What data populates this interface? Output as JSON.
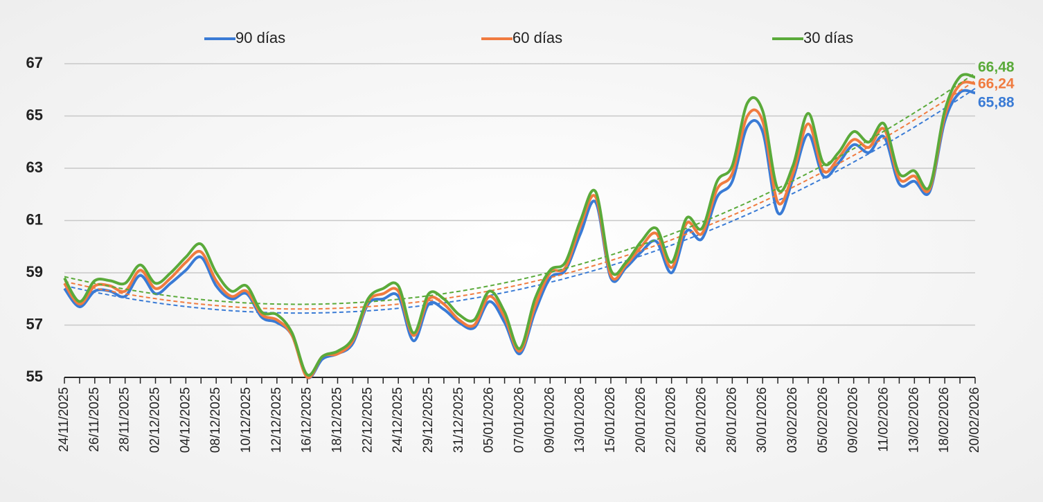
{
  "chart_data": {
    "type": "line",
    "categories": [
      "24/11/2025",
      null,
      "26/11/2025",
      null,
      "28/11/2025",
      null,
      "02/12/2025",
      null,
      "04/12/2025",
      null,
      "08/12/2025",
      null,
      "10/12/2025",
      null,
      "12/12/2025",
      null,
      "16/12/2025",
      null,
      "18/12/2025",
      null,
      "22/12/2025",
      null,
      "24/12/2025",
      null,
      "29/12/2025",
      null,
      "31/12/2025",
      null,
      "05/01/2026",
      null,
      "07/01/2026",
      null,
      "09/01/2026",
      null,
      "13/01/2026",
      null,
      "15/01/2026",
      null,
      "20/01/2026",
      null,
      "22/01/2026",
      null,
      "26/01/2026",
      null,
      "28/01/2026",
      null,
      "30/01/2026",
      null,
      "03/02/2026",
      null,
      "05/02/2026",
      null,
      "09/02/2026",
      null,
      "11/02/2026",
      null,
      "13/02/2026",
      null,
      "18/02/2026",
      null,
      "20/02/2026"
    ],
    "series": [
      {
        "name": "90 días",
        "color": "#3a7bd5",
        "end_label": "65,88",
        "values": [
          58.4,
          57.7,
          58.3,
          58.3,
          58.1,
          58.9,
          58.2,
          58.6,
          59.1,
          59.6,
          58.5,
          58.0,
          58.2,
          57.3,
          57.1,
          56.6,
          55.0,
          55.7,
          55.9,
          56.3,
          57.8,
          58.0,
          58.1,
          56.4,
          57.8,
          57.6,
          57.1,
          56.9,
          57.9,
          57.1,
          55.9,
          57.5,
          58.8,
          59.1,
          60.5,
          61.7,
          58.8,
          59.2,
          59.8,
          60.2,
          59.0,
          60.6,
          60.3,
          61.9,
          62.5,
          64.6,
          64.4,
          61.3,
          62.6,
          64.3,
          62.7,
          63.2,
          63.9,
          63.6,
          64.2,
          62.4,
          62.5,
          62.1,
          64.8,
          65.9,
          65.88
        ]
      },
      {
        "name": "60 días",
        "color": "#f07b3f",
        "end_label": "66,24",
        "values": [
          58.6,
          57.8,
          58.5,
          58.5,
          58.3,
          59.1,
          58.4,
          58.8,
          59.4,
          59.8,
          58.7,
          58.1,
          58.3,
          57.4,
          57.2,
          56.6,
          55.0,
          55.8,
          55.9,
          56.4,
          57.9,
          58.2,
          58.3,
          56.6,
          58.0,
          57.8,
          57.2,
          57.0,
          58.1,
          57.3,
          56.0,
          57.7,
          59.0,
          59.2,
          60.8,
          61.9,
          58.9,
          59.3,
          60.0,
          60.5,
          59.2,
          60.9,
          60.5,
          62.2,
          62.8,
          65.0,
          64.8,
          61.7,
          62.8,
          64.7,
          62.9,
          63.4,
          64.1,
          63.8,
          64.5,
          62.6,
          62.7,
          62.2,
          65.0,
          66.2,
          66.24
        ]
      },
      {
        "name": "30 días",
        "color": "#5aaa3a",
        "end_label": "66,48",
        "values": [
          58.8,
          57.9,
          58.7,
          58.7,
          58.6,
          59.3,
          58.6,
          59.0,
          59.6,
          60.1,
          59.0,
          58.3,
          58.5,
          57.5,
          57.4,
          56.7,
          55.1,
          55.8,
          56.0,
          56.5,
          58.0,
          58.4,
          58.5,
          56.7,
          58.2,
          58.0,
          57.4,
          57.2,
          58.3,
          57.5,
          56.1,
          58.0,
          59.1,
          59.4,
          61.0,
          62.1,
          59.1,
          59.4,
          60.2,
          60.7,
          59.4,
          61.1,
          60.7,
          62.5,
          63.1,
          65.5,
          65.2,
          62.2,
          63.1,
          65.1,
          63.2,
          63.6,
          64.4,
          64.0,
          64.7,
          62.8,
          62.9,
          62.3,
          65.2,
          66.5,
          66.48
        ]
      }
    ],
    "ylim": [
      55,
      67
    ],
    "yticks": [
      55,
      57,
      59,
      61,
      63,
      65,
      67
    ],
    "grid": true,
    "trendline": "polynomial",
    "legend": "top"
  }
}
